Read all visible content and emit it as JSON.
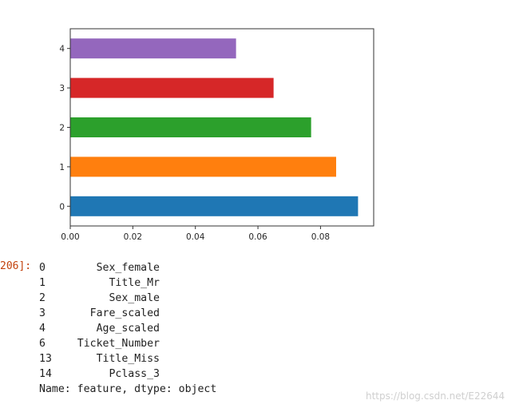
{
  "cell": {
    "prompt": "206]:"
  },
  "chart_data": {
    "type": "bar",
    "orientation": "horizontal",
    "categories": [
      "0",
      "1",
      "2",
      "3",
      "4"
    ],
    "values": [
      0.092,
      0.085,
      0.077,
      0.065,
      0.053
    ],
    "colors": [
      "#1f77b4",
      "#ff7f0e",
      "#2ca02c",
      "#d62728",
      "#9467bd"
    ],
    "xlim": [
      0,
      0.097
    ],
    "xticks": [
      "0.00",
      "0.02",
      "0.04",
      "0.06",
      "0.08"
    ],
    "grid": false,
    "title": "",
    "xlabel": "",
    "ylabel": ""
  },
  "output": {
    "rows": [
      {
        "index": "0",
        "value": "Sex_female"
      },
      {
        "index": "1",
        "value": "Title_Mr"
      },
      {
        "index": "2",
        "value": "Sex_male"
      },
      {
        "index": "3",
        "value": "Fare_scaled"
      },
      {
        "index": "4",
        "value": "Age_scaled"
      },
      {
        "index": "6",
        "value": "Ticket_Number"
      },
      {
        "index": "13",
        "value": "Title_Miss"
      },
      {
        "index": "14",
        "value": "Pclass_3"
      }
    ],
    "footer": "Name: feature, dtype: object"
  },
  "watermark": "https://blog.csdn.net/E22644"
}
